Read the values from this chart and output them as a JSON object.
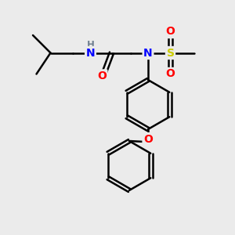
{
  "bg_color": "#ebebeb",
  "atom_colors": {
    "C": "#000000",
    "H": "#708090",
    "N": "#0000ff",
    "O": "#ff0000",
    "S": "#cccc00"
  },
  "bond_color": "#000000",
  "figsize": [
    3.0,
    3.0
  ],
  "dpi": 100,
  "xlim": [
    0,
    10
  ],
  "ylim": [
    0,
    10
  ]
}
